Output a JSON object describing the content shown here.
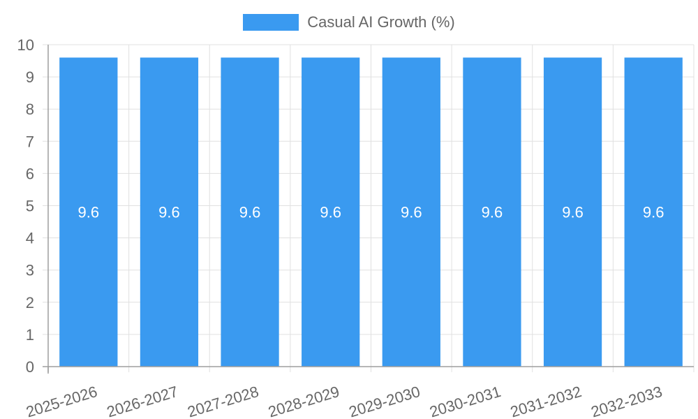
{
  "chart_data": {
    "type": "bar",
    "title": "",
    "xlabel": "",
    "ylabel": "",
    "categories": [
      "2025-2026",
      "2026-2027",
      "2027-2028",
      "2028-2029",
      "2029-2030",
      "2030-2031",
      "2031-2032",
      "2032-2033"
    ],
    "series": [
      {
        "name": "Casual AI Growth (%)",
        "values": [
          9.6,
          9.6,
          9.6,
          9.6,
          9.6,
          9.6,
          9.6,
          9.6
        ],
        "color": "#3a9af0"
      }
    ],
    "ylim": [
      0,
      10
    ],
    "yticks": [
      0,
      1,
      2,
      3,
      4,
      5,
      6,
      7,
      8,
      9,
      10
    ],
    "grid": true,
    "legend_position": "top",
    "data_labels": true
  },
  "legend": {
    "label": "Casual AI Growth (%)",
    "color": "#3a9af0"
  },
  "colors": {
    "bar": "#3a9af0",
    "grid": "#e0e0e0",
    "axis": "#9e9e9e",
    "text": "#666666"
  }
}
